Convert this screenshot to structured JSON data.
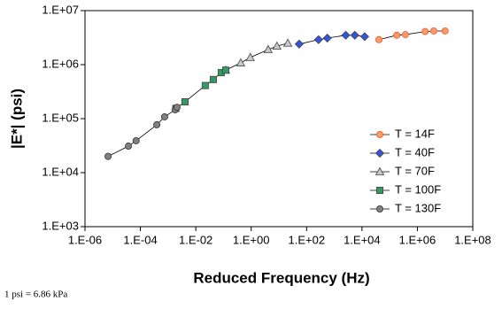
{
  "chart_data": {
    "type": "scatter-line",
    "x_label": "Reduced Frequency (Hz)",
    "y_label": "|E*| (psi)",
    "footnote": "1 psi = 6.86 kPa",
    "log_x": true,
    "log_y": true,
    "xlim": [
      1e-06,
      100000000
    ],
    "ylim": [
      1000,
      10000000
    ],
    "xticks": [
      {
        "value": 1e-06,
        "label": "1.E-06"
      },
      {
        "value": 0.0001,
        "label": "1.E-04"
      },
      {
        "value": 0.01,
        "label": "1.E-02"
      },
      {
        "value": 1,
        "label": "1.E+00"
      },
      {
        "value": 100,
        "label": "1.E+02"
      },
      {
        "value": 10000,
        "label": "1.E+04"
      },
      {
        "value": 1000000,
        "label": "1.E+06"
      },
      {
        "value": 100000000,
        "label": "1.E+08"
      }
    ],
    "yticks": [
      {
        "value": 1000,
        "label": "1.E+03"
      },
      {
        "value": 10000,
        "label": "1.E+04"
      },
      {
        "value": 100000,
        "label": "1.E+05"
      },
      {
        "value": 1000000,
        "label": "1.E+06"
      },
      {
        "value": 10000000,
        "label": "1.E+07"
      }
    ],
    "legend_position": "lower right",
    "series": [
      {
        "name": "T = 14F",
        "color": "#ff9966",
        "marker": "circle",
        "x": [
          41000,
          180000,
          370000,
          1900000,
          3900000,
          10000000
        ],
        "values": [
          2900000,
          3500000,
          3600000,
          4100000,
          4200000,
          4200000
        ]
      },
      {
        "name": "T = 40F",
        "color": "#3355dd",
        "marker": "diamond",
        "x": [
          54,
          270,
          560,
          2600,
          5500,
          12500
        ],
        "values": [
          2400000,
          2900000,
          3100000,
          3500000,
          3500000,
          3300000
        ]
      },
      {
        "name": "T = 70F",
        "color": "#c8c8c8",
        "marker": "triangle",
        "x": [
          0.12,
          0.42,
          0.93,
          4.1,
          8.5,
          21
        ],
        "values": [
          790000,
          1080000,
          1360000,
          1900000,
          2200000,
          2500000
        ]
      },
      {
        "name": "T = 100F",
        "color": "#339966",
        "marker": "square",
        "x": [
          0.0019,
          0.0041,
          0.022,
          0.043,
          0.083,
          0.12
        ],
        "values": [
          155000,
          205000,
          410000,
          530000,
          710000,
          790000
        ]
      },
      {
        "name": "T = 130F",
        "color": "#808080",
        "marker": "circle",
        "x": [
          6.8e-06,
          3.7e-05,
          7e-05,
          0.00039,
          0.00075,
          0.0018,
          0.0021
        ],
        "values": [
          20000,
          31000,
          39000,
          77000,
          108000,
          146000,
          162000
        ]
      }
    ]
  }
}
